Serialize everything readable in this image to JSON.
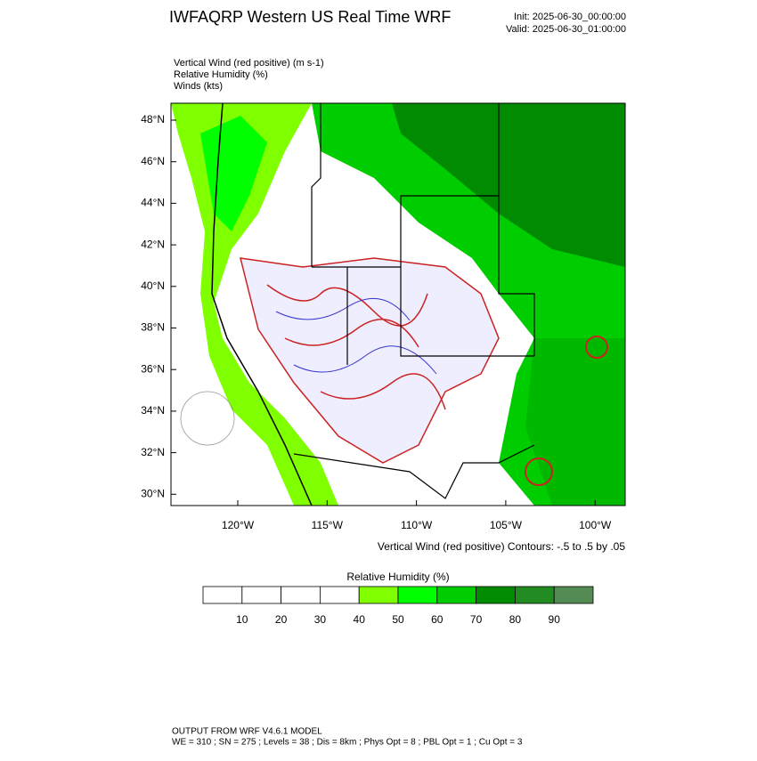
{
  "header": {
    "title": "IWFAQRP Western US Real Time WRF",
    "init": "Init: 2025-06-30_00:00:00",
    "valid": "Valid: 2025-06-30_01:00:00"
  },
  "fields": [
    "Vertical Wind (red positive)   (m s-1)",
    "Relative Humidity   (%)",
    "Winds   (kts)"
  ],
  "map": {
    "lat_labels": [
      "48°N",
      "46°N",
      "44°N",
      "42°N",
      "40°N",
      "38°N",
      "36°N",
      "34°N",
      "32°N",
      "30°N"
    ],
    "lon_labels": [
      "120°W",
      "115°W",
      "110°W",
      "105°W",
      "100°W"
    ],
    "contour_note": "Vertical Wind (red positive) Contours: -.5 to .5 by .05"
  },
  "colorbar": {
    "title": "Relative Humidity   (%)",
    "labels": [
      "10",
      "20",
      "30",
      "40",
      "50",
      "60",
      "70",
      "80",
      "90"
    ],
    "colors": [
      "#ffffff",
      "#ffffff",
      "#ffffff",
      "#ffffff",
      "#7fff00",
      "#00ff00",
      "#00cd00",
      "#008b00",
      "#228b22",
      "#548b54"
    ]
  },
  "footer": [
    "OUTPUT FROM WRF V4.6.1 MODEL",
    "WE = 310 ; SN = 275 ; Levels = 38 ; Dis = 8km ; Phys Opt = 8 ; PBL Opt = 1 ; Cu Opt = 3"
  ]
}
